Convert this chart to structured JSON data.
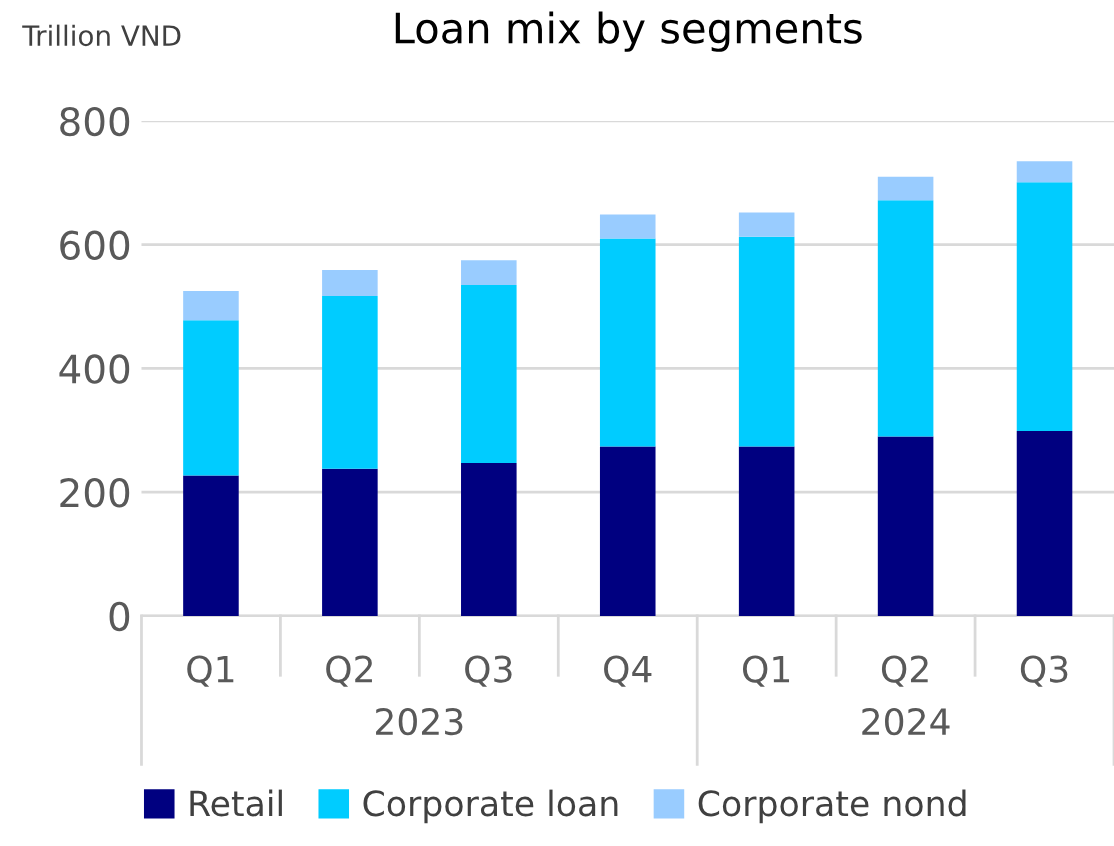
{
  "chart_data": {
    "type": "bar",
    "title": "Loan mix by segments",
    "ylabel": "Trillion VND",
    "categories": [
      "Q1",
      "Q2",
      "Q3",
      "Q4",
      "Q1",
      "Q2",
      "Q3"
    ],
    "annotations": [
      "2023",
      "2024"
    ],
    "stacked": true,
    "series": [
      {
        "name": "Retail",
        "color": "#000080",
        "values": [
          227,
          238,
          247,
          274,
          274,
          290,
          299
        ]
      },
      {
        "name": "Corporate loan",
        "color": "#00ccff",
        "values": [
          251,
          279,
          288,
          336,
          339,
          382,
          402
        ]
      },
      {
        "name": "Corporate nond",
        "color": "#99ccff",
        "values": [
          47,
          42,
          40,
          39,
          39,
          38,
          34
        ]
      }
    ],
    "ylim": [
      0,
      800
    ],
    "yticks": [
      0,
      200,
      400,
      600,
      800
    ],
    "grid": "y",
    "legend": "bottom"
  }
}
